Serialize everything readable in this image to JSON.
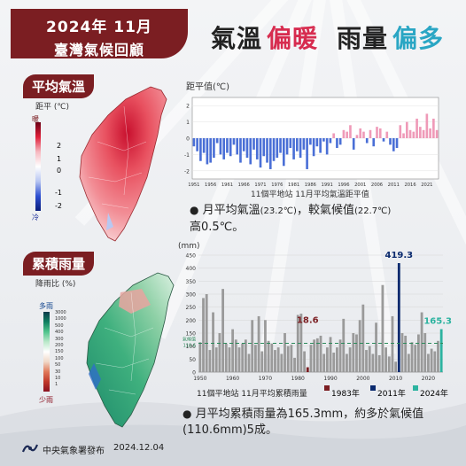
{
  "header": {
    "year_month": "2024年 11月",
    "subtitle": "臺灣氣候回顧"
  },
  "headline": {
    "temp_word": "氣溫",
    "temp_trend": "偏暖",
    "rain_word": "雨量",
    "rain_trend": "偏多"
  },
  "colors": {
    "brand": "#7b1e22",
    "warm": "#e0305f",
    "rain_dark": "#0a2a6e",
    "teal": "#2cb3a0",
    "anomaly_pos": "#ef9ab8",
    "anomaly_neg": "#4a6fd6"
  },
  "temperature_section": {
    "title": "平均氣溫",
    "legend_title": "距平 (℃)",
    "legend_top": "暖",
    "legend_bottom": "冷",
    "legend_ticks": [
      "2",
      "1",
      "0",
      "-1",
      "-2"
    ],
    "chart_ylabel": "距平值(℃)",
    "chart_caption": "11個平地站  11月平均氣溫距平值",
    "note_bullet": "●",
    "note_line1": "月平均氣溫",
    "note_val1": "(23.2℃)",
    "note_mid": "，較氣候值",
    "note_val2": "(22.7℃)",
    "note_line2": "高0.5℃。"
  },
  "rain_section": {
    "title": "累積雨量",
    "legend_title": "降雨比 (%)",
    "legend_top": "多雨",
    "legend_bottom": "少雨",
    "legend_ticks": [
      "3000",
      "1000",
      "500",
      "400",
      "300",
      "200",
      "150",
      "100",
      "50",
      "30",
      "10",
      "1"
    ],
    "chart_unit": "(mm)",
    "chart_caption": "11個平地站  11月平均累積雨量",
    "clim_label_1": "氣候值",
    "clim_label_2": "110.6",
    "legend_1983": "1983年",
    "legend_2011": "2011年",
    "legend_2024": "2024年",
    "label_1983": "18.6",
    "label_2011": "419.3",
    "label_2024": "165.3",
    "note_bullet": "●",
    "note_line1": "月平均累積雨量為165.3mm，約多於氣候值",
    "note_line2": "(110.6mm)5成。"
  },
  "footer": {
    "agency": "中央氣象署發布",
    "date": "2024.12.04"
  },
  "chart_data": [
    {
      "type": "bar",
      "ylabel": "距平值(℃)",
      "xlabel": "11個平地站  11月平均氣溫距平值",
      "x_tick_labels": [
        "1951",
        "1956",
        "1961",
        "1966",
        "1971",
        "1976",
        "1981",
        "1986",
        "1991",
        "1996",
        "2001",
        "2006",
        "2011",
        "2016",
        "2021"
      ],
      "y_tick_labels": [
        "2",
        "1",
        "0",
        "-1",
        "-2"
      ],
      "ylim": [
        -2.5,
        2.5
      ],
      "x": [
        1951,
        1952,
        1953,
        1954,
        1955,
        1956,
        1957,
        1958,
        1959,
        1960,
        1961,
        1962,
        1963,
        1964,
        1965,
        1966,
        1967,
        1968,
        1969,
        1970,
        1971,
        1972,
        1973,
        1974,
        1975,
        1976,
        1977,
        1978,
        1979,
        1980,
        1981,
        1982,
        1983,
        1984,
        1985,
        1986,
        1987,
        1988,
        1989,
        1990,
        1991,
        1992,
        1993,
        1994,
        1995,
        1996,
        1997,
        1998,
        1999,
        2000,
        2001,
        2002,
        2003,
        2004,
        2005,
        2006,
        2007,
        2008,
        2009,
        2010,
        2011,
        2012,
        2013,
        2014,
        2015,
        2016,
        2017,
        2018,
        2019,
        2020,
        2021,
        2022,
        2023,
        2024
      ],
      "values": [
        -0.5,
        -0.8,
        -1.4,
        -0.9,
        -1.6,
        -1.5,
        -1.2,
        -0.3,
        -1.0,
        -1.3,
        -0.9,
        -1.1,
        -0.4,
        -1.0,
        -1.5,
        -0.8,
        -1.2,
        -1.6,
        -0.7,
        -1.3,
        -1.8,
        -1.1,
        -1.5,
        -1.9,
        -1.4,
        -1.2,
        -0.9,
        -1.7,
        -1.0,
        -0.6,
        -1.3,
        -0.8,
        -1.2,
        -0.7,
        -1.9,
        -0.4,
        -1.1,
        -0.5,
        -0.9,
        -0.2,
        -1.0,
        -0.3,
        0.3,
        -0.6,
        -0.4,
        0.5,
        0.4,
        0.8,
        -0.7,
        0.2,
        0.6,
        0.4,
        -0.3,
        0.5,
        -0.5,
        0.7,
        0.6,
        -0.2,
        0.4,
        -0.4,
        -0.8,
        -0.6,
        0.8,
        0.3,
        1.0,
        0.5,
        0.4,
        1.2,
        0.7,
        0.5,
        1.5,
        0.6,
        1.2,
        0.5
      ]
    },
    {
      "type": "bar",
      "ylabel": "(mm)",
      "xlabel": "11個平地站  11月平均累積雨量",
      "ylim": [
        0,
        450
      ],
      "y_tick_labels": [
        "450",
        "400",
        "350",
        "300",
        "250",
        "200",
        "150",
        "100",
        "50",
        "0"
      ],
      "x_tick_labels": [
        "1950",
        "1960",
        "1970",
        "1980",
        "1990",
        "2000",
        "2010",
        "2020"
      ],
      "climatology": 110.6,
      "x": [
        1950,
        1951,
        1952,
        1953,
        1954,
        1955,
        1956,
        1957,
        1958,
        1959,
        1960,
        1961,
        1962,
        1963,
        1964,
        1965,
        1966,
        1967,
        1968,
        1969,
        1970,
        1971,
        1972,
        1973,
        1974,
        1975,
        1976,
        1977,
        1978,
        1979,
        1980,
        1981,
        1982,
        1983,
        1984,
        1985,
        1986,
        1987,
        1988,
        1989,
        1990,
        1991,
        1992,
        1993,
        1994,
        1995,
        1996,
        1997,
        1998,
        1999,
        2000,
        2001,
        2002,
        2003,
        2004,
        2005,
        2006,
        2007,
        2008,
        2009,
        2010,
        2011,
        2012,
        2013,
        2014,
        2015,
        2016,
        2017,
        2018,
        2019,
        2020,
        2021,
        2022,
        2023,
        2024
      ],
      "values": [
        115,
        285,
        300,
        85,
        230,
        95,
        150,
        320,
        110,
        95,
        165,
        125,
        95,
        110,
        125,
        70,
        200,
        105,
        215,
        80,
        200,
        120,
        110,
        85,
        95,
        70,
        150,
        100,
        105,
        55,
        220,
        225,
        80,
        18.6,
        105,
        125,
        130,
        140,
        70,
        95,
        135,
        75,
        95,
        125,
        205,
        70,
        95,
        150,
        145,
        200,
        260,
        85,
        100,
        70,
        190,
        65,
        335,
        95,
        60,
        215,
        40,
        419.3,
        150,
        140,
        70,
        115,
        105,
        145,
        230,
        150,
        70,
        90,
        80,
        120,
        165.3
      ],
      "highlight": {
        "1983": 18.6,
        "2011": 419.3,
        "2024": 165.3
      }
    }
  ]
}
